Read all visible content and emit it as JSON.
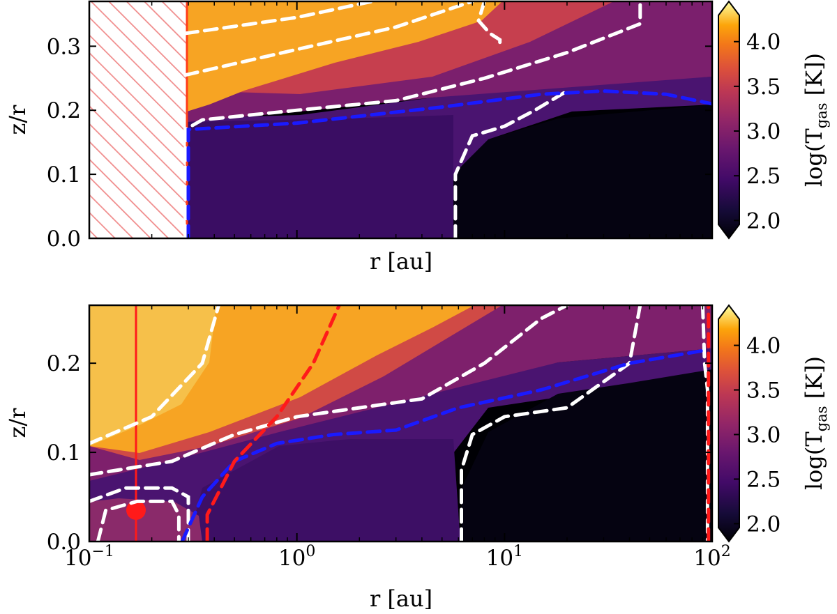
{
  "chart_data": [
    {
      "type": "heatmap",
      "panel": "top",
      "xlabel": "r [au]",
      "ylabel": "z/r",
      "xscale": "log",
      "xlim": [
        0.1,
        100
      ],
      "ylim": [
        0.0,
        0.37
      ],
      "yticks": [
        "0.0",
        "0.1",
        "0.2",
        "0.3"
      ],
      "colorbar": {
        "label": "log(T",
        "label_sub": "gas",
        "label_tail": " [K])",
        "range": [
          1.8,
          4.45
        ],
        "ticks": [
          "2.0",
          "2.5",
          "3.0",
          "3.5",
          "4.0"
        ],
        "colormap": "inferno"
      },
      "inner_excluded_region": {
        "r_max": 0.29,
        "hatch_color": "#f08c8c"
      },
      "contours_white_dashed": [
        {
          "points": [
            [
              0.29,
              0.0
            ],
            [
              0.29,
              0.17
            ],
            [
              0.35,
              0.185
            ],
            [
              1,
              0.2
            ],
            [
              3,
              0.215
            ],
            [
              8,
              0.25
            ],
            [
              20,
              0.29
            ],
            [
              45,
              0.335
            ],
            [
              45,
              0.37
            ]
          ]
        },
        {
          "points": [
            [
              0.29,
              0.255
            ],
            [
              1,
              0.295
            ],
            [
              3,
              0.33
            ],
            [
              7,
              0.37
            ]
          ]
        },
        {
          "points": [
            [
              0.29,
              0.32
            ],
            [
              1,
              0.345
            ],
            [
              2.3,
              0.37
            ]
          ]
        },
        {
          "points": [
            [
              5.8,
              0.0
            ],
            [
              5.8,
              0.1
            ],
            [
              7,
              0.16
            ],
            [
              10,
              0.175
            ],
            [
              14,
              0.2
            ],
            [
              20,
              0.23
            ]
          ]
        },
        {
          "points": [
            [
              8,
              0.37
            ],
            [
              7.5,
              0.34
            ],
            [
              8.5,
              0.32
            ],
            [
              9.5,
              0.31
            ],
            [
              9.5,
              0.3
            ]
          ]
        }
      ],
      "contours_blue_dashed": [
        {
          "points": [
            [
              0.3,
              0.0
            ],
            [
              0.3,
              0.1
            ],
            [
              0.3,
              0.17
            ],
            [
              1,
              0.18
            ],
            [
              5,
              0.205
            ],
            [
              15,
              0.225
            ],
            [
              30,
              0.23
            ],
            [
              60,
              0.225
            ],
            [
              100,
              0.21
            ]
          ]
        }
      ],
      "markers_red": [
        {
          "type": "vertical-line",
          "r": 0.29
        }
      ]
    },
    {
      "type": "heatmap",
      "panel": "bottom",
      "xlabel": "r [au]",
      "ylabel": "z/r",
      "xscale": "log",
      "xlim": [
        0.1,
        100
      ],
      "ylim": [
        0.0,
        0.265
      ],
      "xticks": [
        {
          "base": "10",
          "exp": "−1"
        },
        {
          "base": "10",
          "exp": "0"
        },
        {
          "base": "10",
          "exp": "1"
        },
        {
          "base": "10",
          "exp": "2"
        }
      ],
      "yticks": [
        "0.0",
        "0.1",
        "0.2"
      ],
      "colorbar": {
        "label": "log(T",
        "label_sub": "gas",
        "label_tail": " [K])",
        "range": [
          1.8,
          4.45
        ],
        "ticks": [
          "2.0",
          "2.5",
          "3.0",
          "3.5",
          "4.0"
        ],
        "colormap": "inferno"
      },
      "contours_white_dashed": [
        {
          "points": [
            [
              0.1,
              0.11
            ],
            [
              0.2,
              0.14
            ],
            [
              0.35,
              0.2
            ],
            [
              0.42,
              0.265
            ]
          ]
        },
        {
          "points": [
            [
              0.1,
              0.075
            ],
            [
              0.25,
              0.09
            ],
            [
              0.5,
              0.12
            ],
            [
              1,
              0.14
            ],
            [
              2,
              0.15
            ],
            [
              4,
              0.16
            ],
            [
              8,
              0.2
            ],
            [
              15,
              0.25
            ],
            [
              20,
              0.265
            ]
          ]
        },
        {
          "points": [
            [
              0.11,
              0.0
            ],
            [
              0.12,
              0.035
            ],
            [
              0.17,
              0.045
            ],
            [
              0.25,
              0.045
            ],
            [
              0.27,
              0.03
            ],
            [
              0.27,
              0.0
            ]
          ]
        },
        {
          "points": [
            [
              0.1,
              0.045
            ],
            [
              0.15,
              0.06
            ],
            [
              0.25,
              0.06
            ],
            [
              0.3,
              0.05
            ],
            [
              0.3,
              0.0
            ]
          ]
        },
        {
          "points": [
            [
              6.2,
              0.0
            ],
            [
              6.2,
              0.08
            ],
            [
              7,
              0.12
            ],
            [
              10,
              0.14
            ],
            [
              20,
              0.15
            ],
            [
              40,
              0.2
            ],
            [
              45,
              0.265
            ]
          ]
        },
        {
          "points": [
            [
              90,
              0.265
            ],
            [
              92,
              0.2
            ],
            [
              95,
              0.17
            ],
            [
              95,
              0.0
            ]
          ]
        }
      ],
      "contours_blue_dashed": [
        {
          "points": [
            [
              0.28,
              0.0
            ],
            [
              0.35,
              0.05
            ],
            [
              0.5,
              0.09
            ],
            [
              0.8,
              0.11
            ],
            [
              1.5,
              0.12
            ],
            [
              3,
              0.125
            ],
            [
              6,
              0.15
            ],
            [
              15,
              0.17
            ],
            [
              40,
              0.2
            ],
            [
              95,
              0.215
            ]
          ]
        }
      ],
      "contours_red_dashed": [
        {
          "points": [
            [
              0.37,
              0.0
            ],
            [
              0.37,
              0.03
            ],
            [
              0.5,
              0.09
            ],
            [
              0.8,
              0.14
            ],
            [
              1.2,
              0.2
            ],
            [
              1.6,
              0.265
            ]
          ]
        },
        {
          "points": [
            [
              96,
              0.0
            ],
            [
              96,
              0.265
            ]
          ]
        }
      ],
      "markers_red": [
        {
          "type": "vertical-line",
          "r": 0.16
        },
        {
          "type": "dot",
          "r": 0.16,
          "zr": 0.035
        }
      ]
    }
  ]
}
